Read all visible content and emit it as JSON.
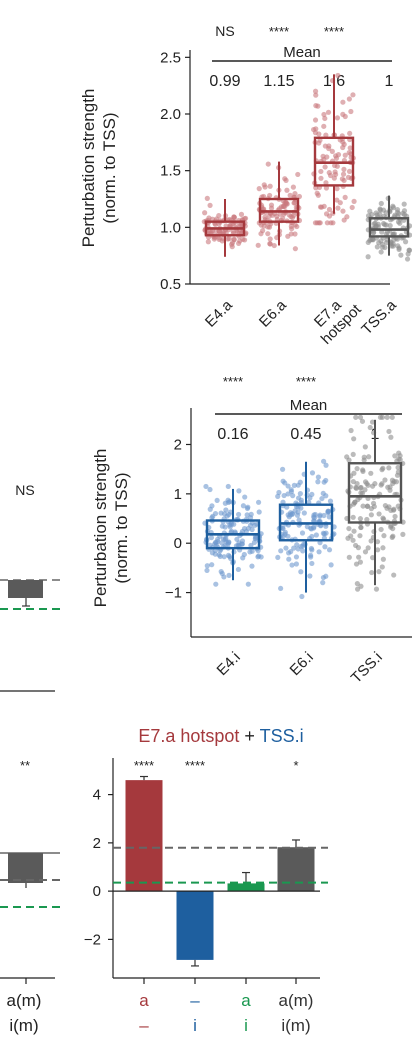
{
  "chart_data": [
    {
      "type": "box",
      "ylabel": [
        "Perturbation strength",
        "(norm. to TSS)"
      ],
      "ylim": [
        0.5,
        2.6
      ],
      "yticks": [
        "0.5",
        "1.0",
        "1.5",
        "2.0",
        "2.5"
      ],
      "categories": [
        [
          "E4.a"
        ],
        [
          "E6.a"
        ],
        [
          "E7.a",
          "hotspot"
        ],
        [
          "TSS.a"
        ]
      ],
      "significance": [
        "NS",
        "****",
        "****",
        ""
      ],
      "mean_title": "Mean",
      "means": [
        "0.99",
        "1.15",
        "1.6",
        "1"
      ],
      "colors": [
        "#a5393d",
        "#a5393d",
        "#a5393d",
        "#555555"
      ],
      "boxes": [
        {
          "q1": 0.93,
          "median": 0.99,
          "q3": 1.05,
          "wlow": 0.74,
          "whigh": 1.25
        },
        {
          "q1": 1.05,
          "median": 1.14,
          "q3": 1.25,
          "wlow": 0.84,
          "whigh": 1.58
        },
        {
          "q1": 1.37,
          "median": 1.57,
          "q3": 1.79,
          "wlow": 1.12,
          "whigh": 2.35
        },
        {
          "q1": 0.92,
          "median": 0.98,
          "q3": 1.08,
          "wlow": 0.75,
          "whigh": 1.28
        }
      ]
    },
    {
      "type": "box",
      "ylabel": [
        "Perturbation strength",
        "(norm. to TSS)"
      ],
      "ylim": [
        -1.9,
        2.8
      ],
      "yticks": [
        "-1",
        "0",
        "1",
        "2"
      ],
      "categories": [
        [
          "E4.i"
        ],
        [
          "E6.i"
        ],
        [
          "TSS.i"
        ]
      ],
      "significance": [
        "****",
        "****",
        ""
      ],
      "mean_title": "Mean",
      "means": [
        "0.16",
        "0.45",
        "1"
      ],
      "colors": [
        "#1e5f9f",
        "#1e5f9f",
        "#555555"
      ],
      "boxes": [
        {
          "q1": -0.1,
          "median": 0.18,
          "q3": 0.46,
          "wlow": -0.75,
          "whigh": 1.1
        },
        {
          "q1": 0.06,
          "median": 0.4,
          "q3": 0.78,
          "wlow": -1.0,
          "whigh": 1.65
        },
        {
          "q1": 0.42,
          "median": 0.95,
          "q3": 1.62,
          "wlow": -0.85,
          "whigh": 2.5
        }
      ]
    },
    {
      "type": "bar",
      "title_parts": [
        {
          "text": "E7.a hotspot",
          "color": "#a5393d"
        },
        {
          "text": " + ",
          "color": "#222222"
        },
        {
          "text": "TSS.i",
          "color": "#1e5f9f"
        }
      ],
      "ylim": [
        -3.6,
        5.6
      ],
      "yticks": [
        "-2",
        "0",
        "2",
        "4"
      ],
      "categories": [
        {
          "line1": "a",
          "line2": "–",
          "c1": "#a5393d",
          "c2": "#a5393d"
        },
        {
          "line1": "–",
          "line2": "i",
          "c1": "#1e5f9f",
          "c2": "#1e5f9f"
        },
        {
          "line1": "a",
          "line2": "i",
          "c1": "#1a9850",
          "c2": "#1a9850"
        },
        {
          "line1": "a(m)",
          "line2": "i(m)",
          "c1": "#333333",
          "c2": "#333333"
        }
      ],
      "values": [
        4.6,
        -2.85,
        0.32,
        1.82
      ],
      "errors": [
        0.15,
        0.25,
        0.45,
        0.3
      ],
      "colors": [
        "#a5393d",
        "#1e5f9f",
        "#1a9850",
        "#5a5a5a"
      ],
      "significance": [
        "****",
        "****",
        "",
        "*"
      ],
      "reference_lines": [
        {
          "value": 1.8,
          "color": "#666666"
        },
        {
          "value": 0.35,
          "color": "#1a9850"
        }
      ]
    },
    {
      "type": "bar",
      "partial": true,
      "middle_panel": {
        "significance": "NS",
        "values": [
          1.0
        ],
        "colors": [
          "#5a5a5a"
        ],
        "reference_lines": [
          {
            "color": "#1a9850"
          }
        ]
      },
      "bottom_panel": {
        "significance": "**",
        "labels": [
          "a(m)",
          "i(m)"
        ],
        "colors": [
          "#5a5a5a"
        ],
        "reference_lines": [
          {
            "color": "#666666"
          },
          {
            "color": "#1a9850"
          }
        ]
      }
    }
  ]
}
